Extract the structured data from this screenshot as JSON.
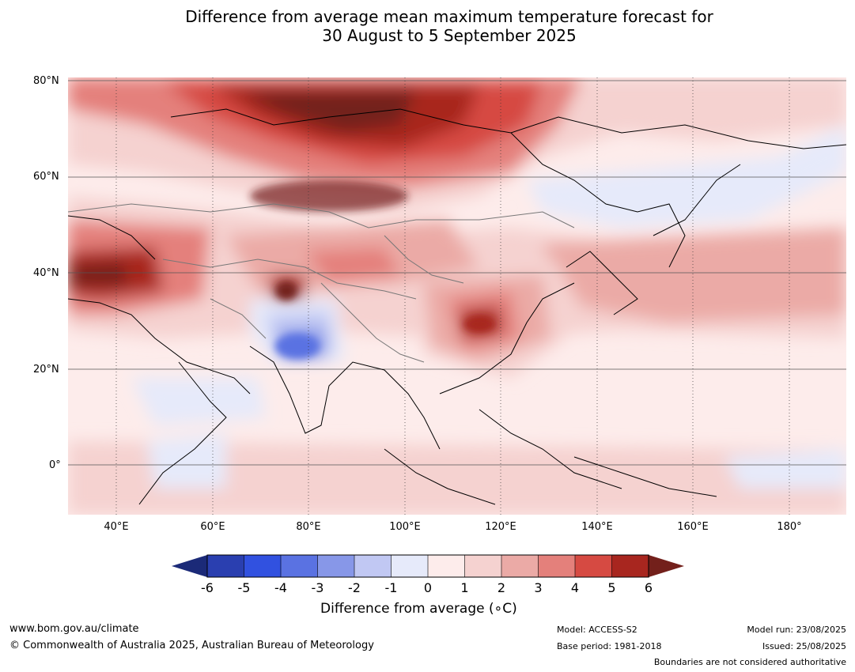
{
  "title": {
    "line1": "Difference from average mean maximum temperature forecast for",
    "line2": "30 August to 5 September 2025"
  },
  "map": {
    "latitude_labels": [
      "80°N",
      "60°N",
      "40°N",
      "20°N",
      "0°"
    ],
    "longitude_labels": [
      "40°E",
      "60°E",
      "80°E",
      "100°E",
      "120°E",
      "140°E",
      "160°E",
      "180°"
    ],
    "latitude_values": [
      80,
      60,
      40,
      20,
      0
    ],
    "longitude_values": [
      40,
      60,
      80,
      100,
      120,
      140,
      160,
      180
    ],
    "lon_range": [
      30,
      191
    ],
    "lat_range": [
      -10,
      81
    ],
    "warm_anomaly_regions": [
      {
        "name": "Northern Siberia",
        "lon": 85,
        "lat": 72,
        "peak": 6
      },
      {
        "name": "Caspian / Caucasus",
        "lon": 40,
        "lat": 40,
        "peak": 6
      },
      {
        "name": "Tarim / West Kunlun",
        "lon": 76,
        "lat": 37,
        "peak": 6
      },
      {
        "name": "Eastern China",
        "lon": 115,
        "lat": 30,
        "peak": 5
      }
    ],
    "cool_anomaly_regions": [
      {
        "name": "Northern India",
        "lon": 78,
        "lat": 25,
        "peak": -3
      },
      {
        "name": "Sea of Okhotsk",
        "lon": 148,
        "lat": 57,
        "peak": -1
      }
    ]
  },
  "colorbar": {
    "ticks": [
      "-6",
      "-5",
      "-4",
      "-3",
      "-2",
      "-1",
      "0",
      "1",
      "2",
      "3",
      "4",
      "5",
      "6"
    ],
    "colors": [
      "#1b2a78",
      "#2a3fb0",
      "#3151e0",
      "#5a72e2",
      "#8797e8",
      "#c1c8f3",
      "#e6eafa",
      "#fdeceb",
      "#f5d2d0",
      "#ebaaa6",
      "#e4807b",
      "#d64a42",
      "#a8261f",
      "#73201b"
    ],
    "label": "Difference from average (∘C)"
  },
  "footer": {
    "url": "www.bom.gov.au/climate",
    "copyright": "© Commonwealth of Australia 2025, Australian Bureau of Meteorology",
    "model": "Model: ACCESS-S2",
    "base_period": "Base period: 1981-2018",
    "model_run": "Model run: 23/08/2025",
    "issued": "Issued: 25/08/2025",
    "disclaimer": "Boundaries are not considered authoritative"
  }
}
